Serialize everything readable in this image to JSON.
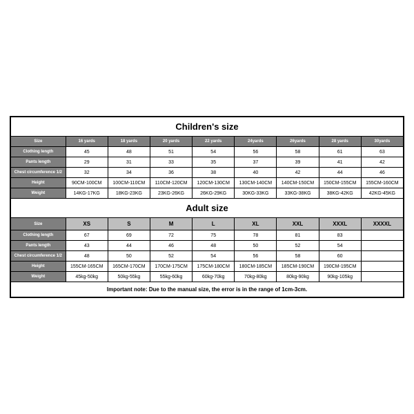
{
  "children": {
    "title": "Children's size",
    "header": [
      "Size",
      "16 yards",
      "18 yards",
      "20 yards",
      "22 yards",
      "24yards",
      "26yards",
      "28 yards",
      "30yards"
    ],
    "rows": [
      {
        "label": "Clothing length",
        "cells": [
          "45",
          "48",
          "51",
          "54",
          "56",
          "58",
          "61",
          "63"
        ]
      },
      {
        "label": "Pants length",
        "cells": [
          "29",
          "31",
          "33",
          "35",
          "37",
          "39",
          "41",
          "42"
        ]
      },
      {
        "label": "Chest circumference 1/2",
        "cells": [
          "32",
          "34",
          "36",
          "38",
          "40",
          "42",
          "44",
          "46"
        ]
      },
      {
        "label": "Height",
        "cells": [
          "90CM-100CM",
          "100CM-110CM",
          "110CM-120CM",
          "120CM-130CM",
          "130CM-140CM",
          "140CM-150CM",
          "150CM-155CM",
          "155CM-160CM"
        ]
      },
      {
        "label": "Weight",
        "cells": [
          "14KG-17KG",
          "18KG-23KG",
          "23KG-26KG",
          "26KG-29KG",
          "30KG-33KG",
          "33KG-38KG",
          "38KG-42KG",
          "42KG-45KG"
        ]
      }
    ]
  },
  "adult": {
    "title": "Adult size",
    "header": [
      "Size",
      "XS",
      "S",
      "M",
      "L",
      "XL",
      "XXL",
      "XXXL",
      "XXXXL"
    ],
    "rows": [
      {
        "label": "Clothing length",
        "cells": [
          "67",
          "69",
          "72",
          "75",
          "78",
          "81",
          "83",
          ""
        ]
      },
      {
        "label": "Pants length",
        "cells": [
          "43",
          "44",
          "46",
          "48",
          "50",
          "52",
          "54",
          ""
        ]
      },
      {
        "label": "Chest circumference 1/2",
        "cells": [
          "48",
          "50",
          "52",
          "54",
          "56",
          "58",
          "60",
          ""
        ]
      },
      {
        "label": "Height",
        "cells": [
          "155CM-165CM",
          "165CM-170CM",
          "170CM-175CM",
          "175CM-180CM",
          "180CM-185CM",
          "185CM-190CM",
          "190CM-195CM",
          ""
        ]
      },
      {
        "label": "Weight",
        "cells": [
          "45kg-50kg",
          "50kg-55kg",
          "55kg-60kg",
          "60kg-70kg",
          "70kg-80kg",
          "80kg-90kg",
          "90kg-105kg",
          ""
        ]
      }
    ]
  },
  "note": "Important note: Due to the manual size, the error is in the range of 1cm-3cm.",
  "style": {
    "header_bg": "#7f7f7f",
    "header_fg": "#ffffff",
    "adult_header_bg": "#bfbfbf",
    "border_color": "#000000",
    "background": "#ffffff",
    "title_fontsize": 13,
    "cell_fontsize": 7,
    "header_fontsize": 6
  }
}
